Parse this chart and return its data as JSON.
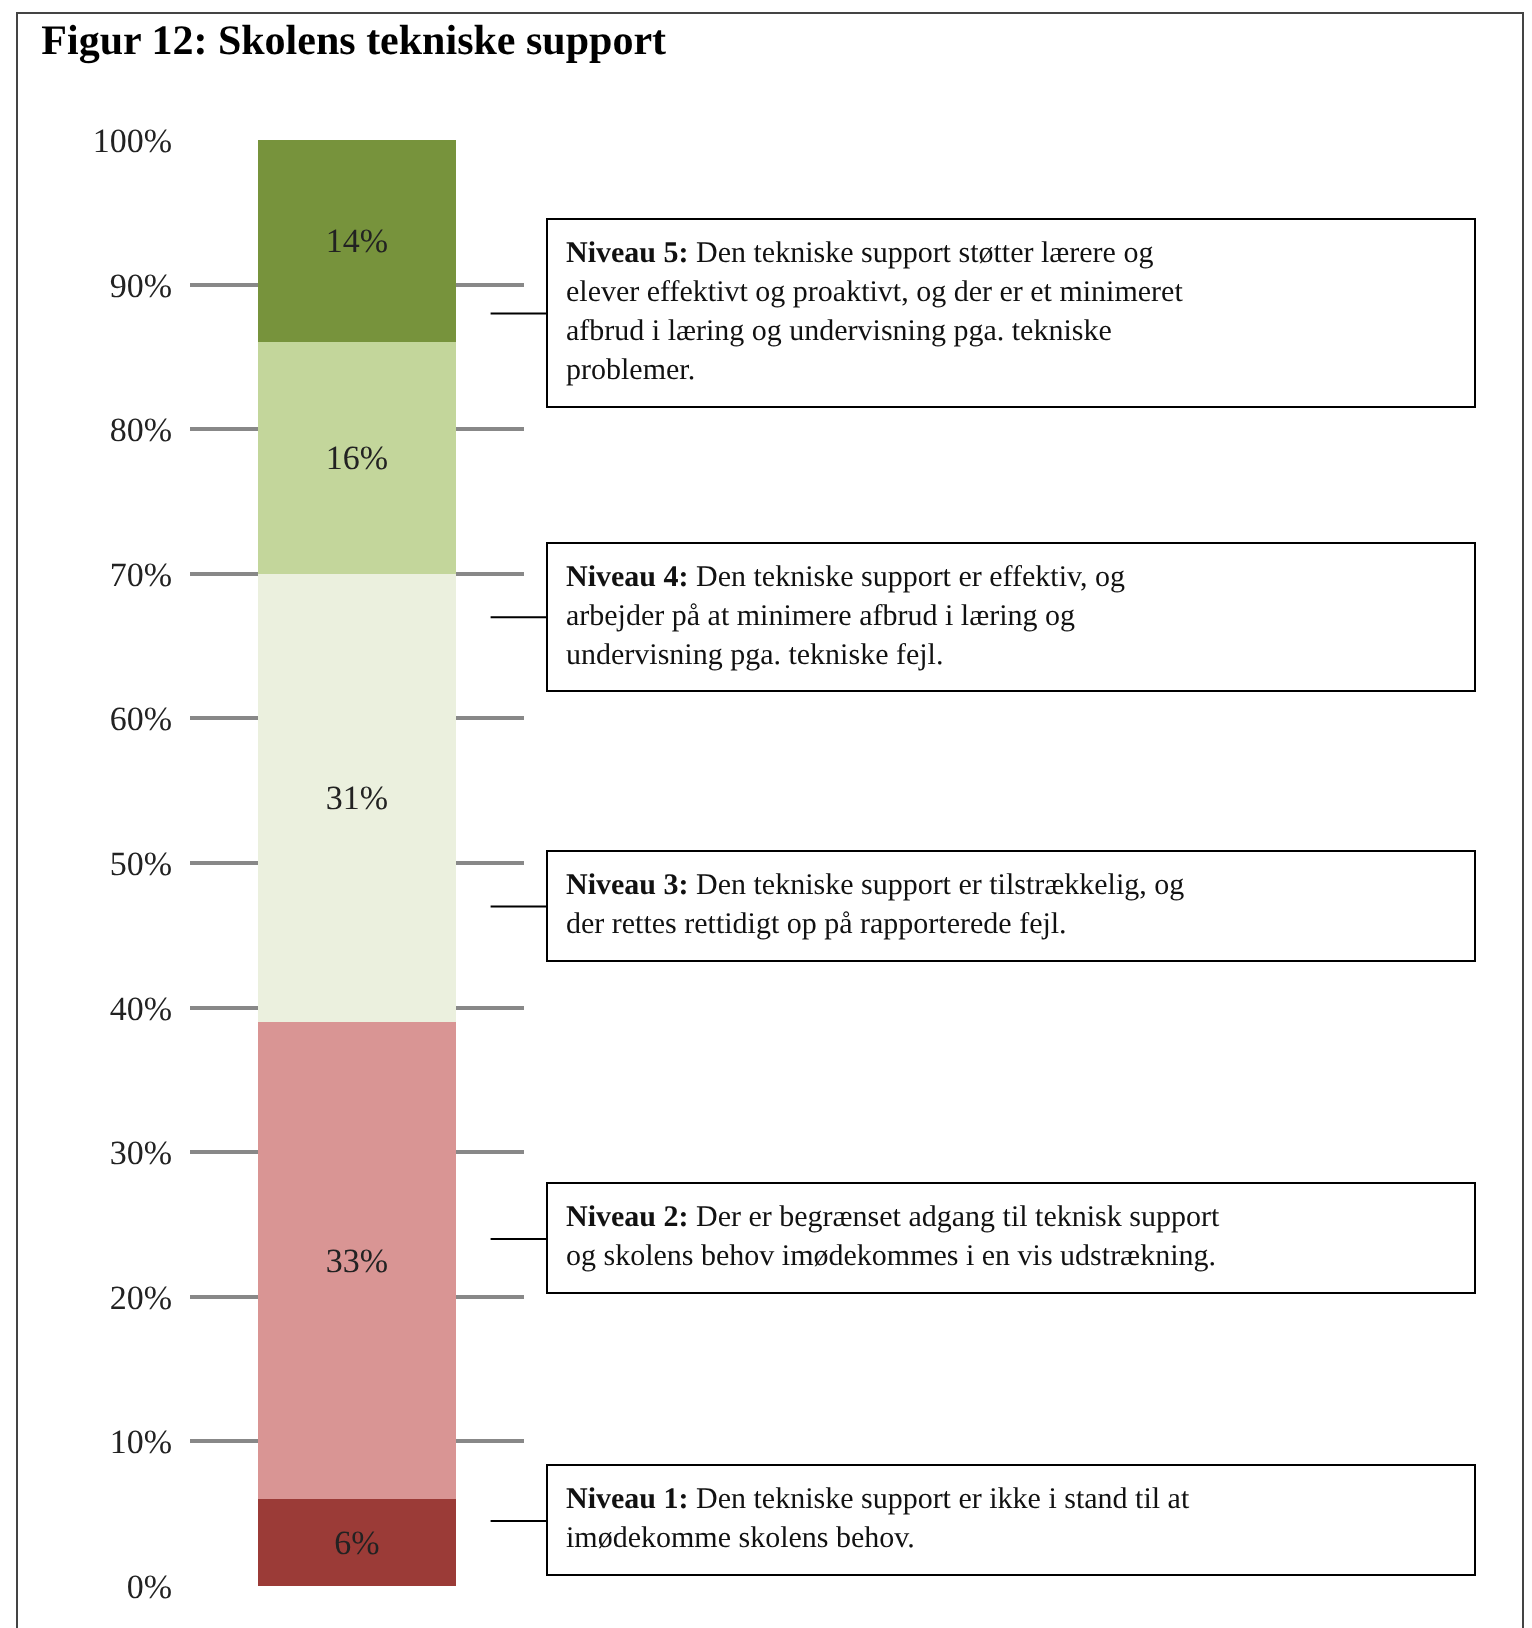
{
  "chart_data": {
    "type": "bar",
    "title": "Figur 12: Skolens tekniske support",
    "stacked": true,
    "categories": [
      null
    ],
    "series": [
      {
        "color": "#9b3b37",
        "values": [
          6
        ],
        "value_labels": [
          "6%"
        ]
      },
      {
        "color": "#d99594",
        "values": [
          33
        ],
        "value_labels": [
          "33%"
        ]
      },
      {
        "color": "#ebf0de",
        "values": [
          31
        ],
        "value_labels": [
          "31%"
        ]
      },
      {
        "color": "#c3d69b",
        "values": [
          16
        ],
        "value_labels": [
          "16%"
        ]
      },
      {
        "color": "#77933c",
        "values": [
          14
        ],
        "value_labels": [
          "14%"
        ]
      }
    ],
    "ylim": [
      0,
      100
    ],
    "yticks": [
      {
        "value": 0,
        "label": "0%"
      },
      {
        "value": 10,
        "label": "10%"
      },
      {
        "value": 20,
        "label": "20%"
      },
      {
        "value": 30,
        "label": "30%"
      },
      {
        "value": 40,
        "label": "40%"
      },
      {
        "value": 50,
        "label": "50%"
      },
      {
        "value": 60,
        "label": "60%"
      },
      {
        "value": 70,
        "label": "70%"
      },
      {
        "value": 80,
        "label": "80%"
      },
      {
        "value": 90,
        "label": "90%"
      },
      {
        "value": 100,
        "label": "100%"
      }
    ],
    "grid": "y",
    "annotations": [
      "Niveau 5: Den tekniske support støtter lærere og elever effektivt og proaktivt, og der er et minimeret afbrud i læring og undervisning pga. tekniske problemer.",
      "Niveau 4: Den tekniske support er effektiv, og arbejder på at minimere afbrud i læring og undervisning pga. tekniske fejl.",
      "Niveau 3: Den tekniske support er tilstrækkelig, og der rettes rettidigt op på rapporterede fejl.",
      "Niveau 2: Der er begrænset adgang til teknisk support og skolens behov imødekommes i en vis udstrækning.",
      "Niveau 1: Den tekniske support er ikke i stand til at imødekomme skolens behov."
    ]
  }
}
